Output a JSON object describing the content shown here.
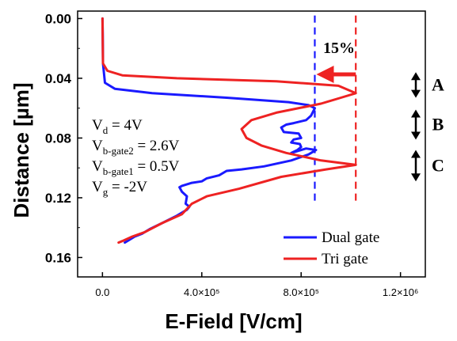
{
  "chart_data": {
    "type": "line",
    "xlabel": "E-Field [V/cm]",
    "ylabel": "Distance [µm]",
    "xlim": [
      -100000.0,
      1300000.0
    ],
    "ylim": [
      -0.005,
      0.173
    ],
    "y_inverted": true,
    "x_ticks": [
      {
        "value": 0,
        "label": "0.0"
      },
      {
        "value": 400000,
        "label": "4.0×10⁵"
      },
      {
        "value": 800000,
        "label": "8.0×10⁵"
      },
      {
        "value": 1200000,
        "label": "1.2×10⁶"
      }
    ],
    "y_ticks": [
      {
        "value": 0.0,
        "label": "0.00"
      },
      {
        "value": 0.04,
        "label": "0.04"
      },
      {
        "value": 0.08,
        "label": "0.08"
      },
      {
        "value": 0.12,
        "label": "0.12"
      },
      {
        "value": 0.16,
        "label": "0.16"
      }
    ],
    "legend_position": "bottom-right",
    "series": [
      {
        "name": "Dual gate",
        "color": "#1a1aff",
        "points": [
          [
            0,
            0.0
          ],
          [
            1000,
            0.01
          ],
          [
            2000,
            0.03
          ],
          [
            10000,
            0.043
          ],
          [
            50000,
            0.047
          ],
          [
            200000,
            0.05
          ],
          [
            500000,
            0.053
          ],
          [
            750000,
            0.056
          ],
          [
            830000,
            0.058
          ],
          [
            855000,
            0.06
          ],
          [
            840000,
            0.065
          ],
          [
            820000,
            0.068
          ],
          [
            770000,
            0.07
          ],
          [
            740000,
            0.071
          ],
          [
            720000,
            0.073
          ],
          [
            730000,
            0.076
          ],
          [
            790000,
            0.077
          ],
          [
            800000,
            0.08
          ],
          [
            770000,
            0.081
          ],
          [
            760000,
            0.083
          ],
          [
            795000,
            0.084
          ],
          [
            800000,
            0.086
          ],
          [
            785000,
            0.088
          ],
          [
            760000,
            0.09
          ],
          [
            820000,
            0.087
          ],
          [
            860000,
            0.088
          ],
          [
            830000,
            0.091
          ],
          [
            760000,
            0.095
          ],
          [
            650000,
            0.099
          ],
          [
            560000,
            0.101
          ],
          [
            500000,
            0.102
          ],
          [
            470000,
            0.105
          ],
          [
            420000,
            0.107
          ],
          [
            400000,
            0.109
          ],
          [
            360000,
            0.11
          ],
          [
            320000,
            0.112
          ],
          [
            310000,
            0.113
          ],
          [
            320000,
            0.116
          ],
          [
            340000,
            0.119
          ],
          [
            335000,
            0.124
          ],
          [
            350000,
            0.126
          ],
          [
            340000,
            0.128
          ],
          [
            300000,
            0.132
          ],
          [
            240000,
            0.137
          ],
          [
            190000,
            0.141
          ],
          [
            160000,
            0.144
          ],
          [
            130000,
            0.146
          ],
          [
            110000,
            0.148
          ],
          [
            90000,
            0.15
          ]
        ]
      },
      {
        "name": "Tri gate",
        "color": "#ee2222",
        "points": [
          [
            0,
            0.0
          ],
          [
            2000,
            0.03
          ],
          [
            20000,
            0.035
          ],
          [
            80000,
            0.038
          ],
          [
            300000,
            0.04
          ],
          [
            700000,
            0.042
          ],
          [
            950000,
            0.045
          ],
          [
            1020000,
            0.05
          ],
          [
            960000,
            0.053
          ],
          [
            880000,
            0.057
          ],
          [
            700000,
            0.063
          ],
          [
            600000,
            0.068
          ],
          [
            560000,
            0.074
          ],
          [
            580000,
            0.08
          ],
          [
            640000,
            0.085
          ],
          [
            740000,
            0.09
          ],
          [
            880000,
            0.095
          ],
          [
            1020000,
            0.098
          ],
          [
            900000,
            0.101
          ],
          [
            720000,
            0.106
          ],
          [
            550000,
            0.114
          ],
          [
            420000,
            0.119
          ],
          [
            360000,
            0.124
          ],
          [
            320000,
            0.131
          ],
          [
            240000,
            0.137
          ],
          [
            170000,
            0.143
          ],
          [
            120000,
            0.146
          ],
          [
            80000,
            0.149
          ],
          [
            65000,
            0.15
          ]
        ]
      }
    ],
    "reference_lines": [
      {
        "x": 855000,
        "color": "#1a1aff"
      },
      {
        "x": 1020000,
        "color": "#ee2222"
      }
    ],
    "annotations": {
      "percent": "15%",
      "params": [
        {
          "main": "V",
          "sub": "d",
          "rest": " =  4V"
        },
        {
          "main": "V",
          "sub": "b-gate2",
          "rest": " = 2.6V"
        },
        {
          "main": "V",
          "sub": "b-gate1",
          "rest": " = 0.5V"
        },
        {
          "main": "V",
          "sub": "g",
          "rest": " = -2V"
        }
      ],
      "regions": [
        {
          "label": "A",
          "range": [
            0.037,
            0.052
          ]
        },
        {
          "label": "B",
          "range": [
            0.062,
            0.08
          ]
        },
        {
          "label": "C",
          "range": [
            0.089,
            0.108
          ]
        }
      ],
      "arrow_color": "#ee2222"
    }
  }
}
